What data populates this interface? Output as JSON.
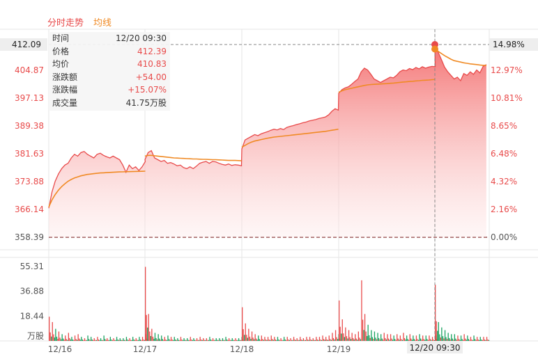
{
  "legend": {
    "price_label": "分时走势",
    "avg_label": "均线"
  },
  "colors": {
    "price_line": "#e84a4a",
    "avg_line": "#f08a24",
    "up": "#e84a4a",
    "down": "#19a15f",
    "grid": "#e6e6e6"
  },
  "tooltip": {
    "rows": [
      {
        "label": "时间",
        "value": "12/20 09:30",
        "red": false
      },
      {
        "label": "价格",
        "value": "412.39",
        "red": true
      },
      {
        "label": "均价",
        "value": "410.83",
        "red": true
      },
      {
        "label": "涨跌额",
        "value": "+54.00",
        "red": true
      },
      {
        "label": "涨跌幅",
        "value": "+15.07%",
        "red": true
      },
      {
        "label": "成交量",
        "value": "41.75万股",
        "red": false
      }
    ]
  },
  "crosshair": {
    "price_label": "412.09",
    "pct_label": "14.98%",
    "time_label": "12/20 09:30",
    "day_index": 4,
    "price": 412.09
  },
  "chart_data": {
    "type": "area",
    "title": "",
    "x_categories": [
      "12/16",
      "12/17",
      "12/18",
      "12/19",
      "12/20"
    ],
    "y_ticks": [
      "412.09",
      "404.87",
      "397.13",
      "389.38",
      "381.63",
      "373.88",
      "366.14",
      "358.39"
    ],
    "y_ticks_values": [
      412.09,
      404.87,
      397.13,
      389.38,
      381.63,
      373.88,
      366.14,
      358.39
    ],
    "pct_ticks": [
      "14.98%",
      "12.97%",
      "10.81%",
      "8.65%",
      "6.48%",
      "4.32%",
      "2.16%",
      "0.00%"
    ],
    "base_price": 358.39,
    "ylim": [
      358.39,
      412.09
    ],
    "volume_ticks": [
      "55.31",
      "36.88",
      "18.44"
    ],
    "volume_ticks_values": [
      55.31,
      36.88,
      18.44
    ],
    "volume_unit": "万股",
    "volume_max": 55.31,
    "series": [
      {
        "name": "分时走势",
        "days": [
          [
            366.5,
            371,
            374,
            376,
            377.5,
            378.5,
            379,
            380.5,
            381.5,
            381,
            382,
            382.3,
            381.5,
            381,
            380.5,
            381.5,
            381.8,
            381.2,
            380.8,
            380.5,
            381,
            380.5,
            380,
            378.5,
            376.5,
            378.5,
            377.5,
            378,
            377,
            378,
            379.5
          ],
          [
            380,
            382,
            382.5,
            380.5,
            380,
            379.5,
            379.8,
            379,
            379.2,
            378.8,
            378.3,
            378.5,
            377.8,
            377.5,
            378,
            377.5,
            378.2,
            379,
            379.3,
            379.5,
            379,
            379.5,
            379.4,
            379,
            378.7,
            378.5,
            378.8,
            378.4,
            378.6,
            378.5,
            378.3
          ],
          [
            383,
            385.5,
            386,
            386.5,
            387,
            386.7,
            387.2,
            387.5,
            387.8,
            388.2,
            388.5,
            388.3,
            388.7,
            388.4,
            389,
            389.3,
            389.5,
            389.8,
            390,
            390.3,
            390.5,
            390.8,
            391,
            391.2,
            391.5,
            391.7,
            391.9,
            392.5,
            393.5,
            394.2,
            393.8
          ],
          [
            398.5,
            399.5,
            400,
            400.3,
            401,
            401.8,
            402.5,
            404.5,
            405.5,
            405,
            403.8,
            402.5,
            402,
            401.5,
            402,
            402.5,
            403,
            402.8,
            403.5,
            404.5,
            405,
            404.8,
            405.4,
            405.1,
            405.7,
            405.3,
            405.9,
            405.5,
            405.8,
            406,
            405.9
          ],
          [
            412.39,
            410,
            408,
            405.8,
            404.5,
            403.5,
            402.5,
            403,
            402,
            404,
            403.5,
            404.5,
            403.8,
            405,
            404.2,
            406,
            406.5,
            405.8,
            406.2
          ]
        ]
      },
      {
        "name": "均线",
        "days": [
          [
            366.8,
            368.8,
            370.3,
            371.5,
            372.5,
            373.3,
            374,
            374.5,
            374.9,
            375.2,
            375.5,
            375.7,
            375.9,
            376,
            376.1,
            376.2,
            376.3,
            376.35,
            376.4,
            376.45,
            376.5,
            376.55,
            376.6,
            376.62,
            376.65,
            376.68,
            376.7,
            376.72,
            376.74,
            376.76,
            376.8
          ],
          [
            381,
            381.2,
            381.2,
            381.1,
            381,
            380.9,
            380.8,
            380.7,
            380.6,
            380.5,
            380.45,
            380.4,
            380.35,
            380.3,
            380.25,
            380.2,
            380.2,
            380.15,
            380.1,
            380.1,
            380.05,
            380,
            380,
            379.95,
            379.9,
            379.85,
            379.8,
            379.8,
            379.8,
            379.75,
            379.7
          ],
          [
            383.5,
            384,
            384.5,
            384.9,
            385.2,
            385.4,
            385.6,
            385.8,
            386,
            386.15,
            386.3,
            386.4,
            386.5,
            386.6,
            386.7,
            386.8,
            386.9,
            387,
            387.1,
            387.2,
            387.3,
            387.4,
            387.5,
            387.6,
            387.7,
            387.8,
            387.9,
            388.05,
            388.2,
            388.35,
            388.5
          ],
          [
            398.8,
            399.2,
            399.5,
            399.7,
            399.9,
            400.1,
            400.3,
            400.5,
            400.7,
            400.85,
            400.95,
            401,
            401.05,
            401.1,
            401.15,
            401.2,
            401.3,
            401.35,
            401.45,
            401.55,
            401.65,
            401.7,
            401.8,
            401.85,
            401.95,
            402,
            402.1,
            402.15,
            402.2,
            402.3,
            402.35
          ],
          [
            410.83,
            410.2,
            409.6,
            409,
            408.5,
            408,
            407.6,
            407.4,
            407.2,
            407,
            406.85,
            406.7,
            406.6,
            406.5,
            406.4,
            406.3,
            406.3,
            406.25,
            406.2
          ]
        ]
      }
    ],
    "volume": {
      "days": [
        [
          18,
          14,
          9,
          7,
          5,
          4,
          6,
          3,
          4,
          5,
          3,
          2,
          4,
          3,
          2,
          3,
          2,
          4,
          2,
          3,
          2,
          3,
          2,
          2,
          3,
          2,
          3,
          2,
          3,
          3,
          5
        ],
        [
          55,
          20,
          9,
          6,
          5,
          4,
          3,
          4,
          3,
          3,
          2,
          3,
          2,
          2,
          3,
          2,
          2,
          3,
          2,
          2,
          3,
          2,
          2,
          2,
          2,
          3,
          2,
          2,
          2,
          2,
          3
        ],
        [
          25,
          13,
          9,
          7,
          5,
          4,
          4,
          3,
          3,
          4,
          3,
          3,
          2,
          3,
          3,
          2,
          3,
          2,
          3,
          2,
          3,
          3,
          2,
          3,
          3,
          4,
          3,
          4,
          6,
          8,
          5
        ],
        [
          30,
          16,
          10,
          8,
          6,
          5,
          7,
          45,
          20,
          12,
          8,
          7,
          6,
          5,
          6,
          5,
          5,
          4,
          5,
          4,
          6,
          4,
          5,
          4,
          4,
          5,
          4,
          4,
          4,
          3,
          4
        ],
        [
          41.75,
          14,
          10,
          8,
          6,
          5,
          5,
          4,
          4,
          5,
          4,
          3,
          4,
          3,
          3,
          3,
          3,
          3,
          4
        ]
      ],
      "up": [
        [
          1,
          1,
          0,
          1,
          0,
          1,
          1,
          0,
          1,
          1,
          0,
          1,
          0,
          0,
          1,
          1,
          0,
          0,
          1,
          0,
          1,
          0,
          0,
          0,
          0,
          1,
          0,
          1,
          0,
          1,
          1
        ],
        [
          1,
          1,
          1,
          0,
          0,
          0,
          1,
          0,
          1,
          0,
          0,
          1,
          0,
          0,
          1,
          0,
          1,
          1,
          1,
          1,
          0,
          1,
          0,
          0,
          0,
          0,
          1,
          0,
          1,
          0,
          0
        ],
        [
          1,
          1,
          1,
          1,
          1,
          0,
          1,
          1,
          1,
          1,
          1,
          0,
          1,
          0,
          1,
          1,
          1,
          1,
          1,
          1,
          1,
          1,
          1,
          1,
          1,
          1,
          1,
          1,
          1,
          1,
          0
        ],
        [
          1,
          1,
          1,
          1,
          1,
          1,
          1,
          1,
          1,
          0,
          0,
          0,
          0,
          0,
          1,
          1,
          1,
          0,
          1,
          1,
          1,
          0,
          1,
          0,
          1,
          0,
          1,
          0,
          1,
          1,
          0
        ],
        [
          1,
          0,
          0,
          0,
          0,
          0,
          0,
          1,
          0,
          1,
          0,
          1,
          0,
          1,
          0,
          1,
          1,
          0,
          1
        ]
      ]
    },
    "legend": [
      "分时走势",
      "均线"
    ],
    "grid": true
  }
}
